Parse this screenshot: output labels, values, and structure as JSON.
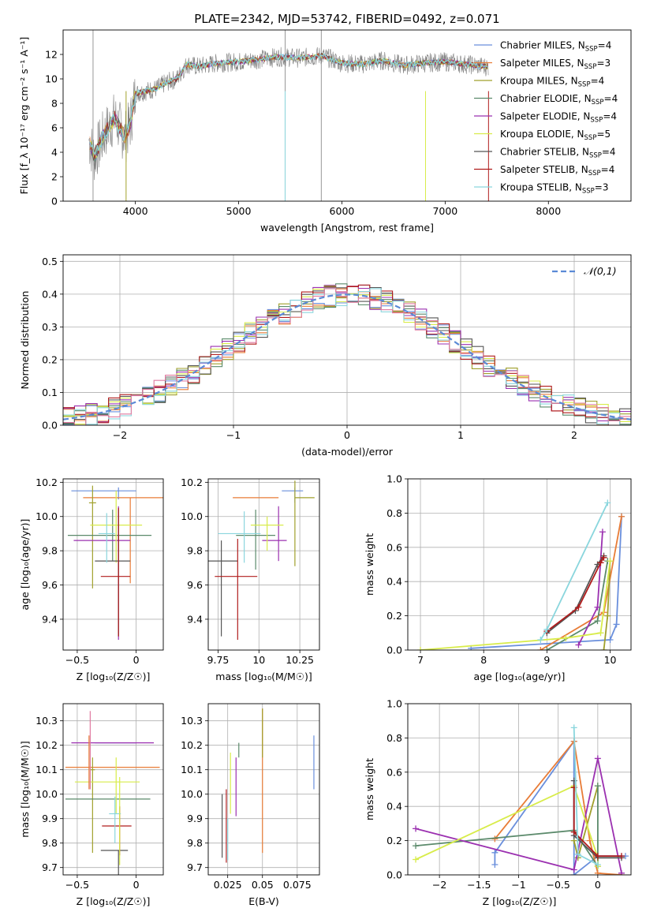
{
  "figure_title": "PLATE=2342, MJD=53742, FIBERID=0492, z=0.071",
  "models": [
    {
      "name": "Chabrier MILES",
      "nssp": "4",
      "color": "#6a8fdc"
    },
    {
      "name": "Salpeter MILES",
      "nssp": "3",
      "color": "#e87c37"
    },
    {
      "name": "Kroupa MILES",
      "nssp": "4",
      "color": "#a0a02c"
    },
    {
      "name": "Chabrier ELODIE",
      "nssp": "4",
      "color": "#5b8a6b"
    },
    {
      "name": "Salpeter ELODIE",
      "nssp": "4",
      "color": "#9b30b0"
    },
    {
      "name": "Kroupa ELODIE",
      "nssp": "5",
      "color": "#d8ec4a"
    },
    {
      "name": "Chabrier STELIB",
      "nssp": "4",
      "color": "#555555"
    },
    {
      "name": "Salpeter STELIB",
      "nssp": "4",
      "color": "#b01c1c"
    },
    {
      "name": "Kroupa STELIB",
      "nssp": "3",
      "color": "#8ad6dd"
    }
  ],
  "extra_colors": {
    "pink": "#e07aa0",
    "data_gray": "#7f7f7f",
    "normal_curve": "#5b8ad6"
  },
  "chart_data": [
    {
      "id": "spectrum",
      "type": "line",
      "xlabel": "wavelength [Angstrom, rest frame]",
      "ylabel": "Flux [f_λ 10⁻¹⁷ erg cm⁻² s⁻¹ A⁻¹]",
      "xlim": [
        3300,
        8800
      ],
      "ylim": [
        0,
        14
      ],
      "xticks": [
        4000,
        5000,
        6000,
        7000,
        8000
      ],
      "yticks": [
        0,
        2,
        4,
        6,
        8,
        10,
        12
      ],
      "legend_position": "upper-right",
      "series": [
        {
          "name": "data",
          "x": [
            3550,
            3600,
            3700,
            3800,
            3900,
            3950,
            4000,
            4100,
            4200,
            4300,
            4400,
            4500,
            4600,
            4800,
            5000,
            5200,
            5400,
            5600,
            5800,
            6000,
            6200,
            6400,
            6600,
            6800,
            7000,
            7200,
            7400
          ],
          "y": [
            5.0,
            3.6,
            5.5,
            6.8,
            5.2,
            6.3,
            8.8,
            9.0,
            9.2,
            9.7,
            10.0,
            11.2,
            11.0,
            11.3,
            11.4,
            11.6,
            11.8,
            11.7,
            11.9,
            11.3,
            11.2,
            11.5,
            11.1,
            11.3,
            11.4,
            11.2,
            11.0
          ]
        }
      ]
    },
    {
      "id": "residuals",
      "type": "line",
      "xlabel": "(data-model)/error",
      "ylabel": "Normed distribution",
      "xlim": [
        -2.5,
        2.5
      ],
      "ylim": [
        0,
        0.52
      ],
      "xticks": [
        -2,
        -1,
        0,
        1,
        2
      ],
      "yticks": [
        0.0,
        0.1,
        0.2,
        0.3,
        0.4,
        0.5
      ],
      "legend": "𝒩(0,1)",
      "normal": {
        "mean": 0,
        "sigma": 1
      }
    },
    {
      "id": "age_vs_Z",
      "type": "scatter",
      "xlabel": "Z [log₁₀(Z/Z☉)]",
      "ylabel": "age  [log₁₀(age/yr)]",
      "xlim": [
        -0.62,
        0.23
      ],
      "ylim": [
        9.22,
        10.22
      ],
      "xticks": [
        -0.5,
        0.0
      ],
      "yticks": [
        9.4,
        9.6,
        9.8,
        10.0,
        10.2
      ],
      "points": [
        {
          "x": -0.15,
          "xerr": [
            0.4,
            0.15
          ],
          "y": 10.15,
          "yerr": [
            0.05,
            0.02
          ]
        },
        {
          "x": -0.05,
          "xerr": [
            0.4,
            0.28
          ],
          "y": 10.11,
          "yerr": [
            0.5,
            0.0
          ]
        },
        {
          "x": -0.37,
          "xerr": [
            0.03,
            0.03
          ],
          "y": 10.08,
          "yerr": [
            0.5,
            0.1
          ]
        },
        {
          "x": -0.2,
          "xerr": [
            0.38,
            0.33
          ],
          "y": 9.89,
          "yerr": [
            0.15,
            0.15
          ]
        },
        {
          "x": -0.15,
          "xerr": [
            0.38,
            0.1
          ],
          "y": 9.86,
          "yerr": [
            0.58,
            0.2
          ]
        },
        {
          "x": -0.17,
          "xerr": [
            0.22,
            0.22
          ],
          "y": 9.95,
          "yerr": [
            0.22,
            0.2
          ]
        },
        {
          "x": -0.15,
          "xerr": [
            0.2,
            0.1
          ],
          "y": 9.74,
          "yerr": [
            0.44,
            0.3
          ]
        },
        {
          "x": -0.15,
          "xerr": [
            0.15,
            0.1
          ],
          "y": 9.65,
          "yerr": [
            0.35,
            0.4
          ]
        },
        {
          "x": -0.25,
          "xerr": [
            0.07,
            0.07
          ],
          "y": 9.9,
          "yerr": [
            0.17,
            0.12
          ]
        }
      ]
    },
    {
      "id": "age_vs_mass",
      "type": "scatter",
      "xlabel": "mass [log₁₀(M/M☉)]",
      "ylabel": "",
      "xlim": [
        9.69,
        10.37
      ],
      "ylim": [
        9.22,
        10.22
      ],
      "xticks": [
        9.75,
        10.0,
        10.25
      ],
      "yticks": [
        9.4,
        9.6,
        9.8,
        10.0,
        10.2
      ],
      "points": [
        {
          "x": 10.22,
          "xerr": [
            0.08,
            0.05
          ],
          "y": 10.15,
          "yerr": [
            0.07,
            0.02
          ]
        },
        {
          "x": 10.12,
          "xerr": [
            0.28,
            0.0
          ],
          "y": 10.11,
          "yerr": [
            0.0,
            0.0
          ]
        },
        {
          "x": 10.22,
          "xerr": [
            0.0,
            0.12
          ],
          "y": 10.11,
          "yerr": [
            0.4,
            0.1
          ]
        },
        {
          "x": 9.98,
          "xerr": [
            0.12,
            0.12
          ],
          "y": 9.89,
          "yerr": [
            0.2,
            0.15
          ]
        },
        {
          "x": 10.12,
          "xerr": [
            0.1,
            0.05
          ],
          "y": 9.86,
          "yerr": [
            0.12,
            0.2
          ]
        },
        {
          "x": 10.05,
          "xerr": [
            0.1,
            0.1
          ],
          "y": 9.95,
          "yerr": [
            0.15,
            0.05
          ]
        },
        {
          "x": 9.77,
          "xerr": [
            0.14,
            0.1
          ],
          "y": 9.74,
          "yerr": [
            0.44,
            0.12
          ]
        },
        {
          "x": 9.87,
          "xerr": [
            0.14,
            0.12
          ],
          "y": 9.65,
          "yerr": [
            0.37,
            0.22
          ]
        },
        {
          "x": 9.91,
          "xerr": [
            0.16,
            0.1
          ],
          "y": 9.9,
          "yerr": [
            0.17,
            0.13
          ]
        }
      ]
    },
    {
      "id": "weight_vs_age",
      "type": "line",
      "xlabel": "age  [log₁₀(age/yr)]",
      "ylabel": "mass weight",
      "xlim": [
        6.8,
        10.33
      ],
      "ylim": [
        0,
        1.0
      ],
      "xticks": [
        7,
        8,
        9,
        10
      ],
      "yticks": [
        0.0,
        0.2,
        0.4,
        0.6,
        0.8,
        1.0
      ],
      "series": [
        {
          "name": "Chabrier MILES",
          "x": [
            7.8,
            10.0,
            10.1,
            10.18
          ],
          "y": [
            0.01,
            0.06,
            0.15,
            0.78
          ]
        },
        {
          "name": "Salpeter MILES",
          "x": [
            8.9,
            9.9,
            10.18
          ],
          "y": [
            0.0,
            0.22,
            0.78
          ]
        },
        {
          "name": "Kroupa MILES",
          "x": [
            9.9,
            9.96,
            10.0
          ],
          "y": [
            0.0,
            0.2,
            0.52
          ]
        },
        {
          "name": "Chabrier ELODIE",
          "x": [
            9.0,
            9.8,
            9.96
          ],
          "y": [
            0.0,
            0.17,
            0.52
          ]
        },
        {
          "name": "Salpeter ELODIE",
          "x": [
            9.5,
            9.8,
            9.88
          ],
          "y": [
            0.03,
            0.25,
            0.69
          ]
        },
        {
          "name": "Kroupa ELODIE",
          "x": [
            7.0,
            9.3,
            9.85,
            10.0
          ],
          "y": [
            0.0,
            0.07,
            0.1,
            0.52
          ]
        },
        {
          "name": "Chabrier STELIB",
          "x": [
            9.0,
            9.45,
            9.8,
            9.9
          ],
          "y": [
            0.1,
            0.23,
            0.5,
            0.55
          ]
        },
        {
          "name": "Salpeter STELIB",
          "x": [
            9.0,
            9.5,
            9.85,
            9.9
          ],
          "y": [
            0.11,
            0.25,
            0.51,
            0.54
          ]
        },
        {
          "name": "Kroupa STELIB",
          "x": [
            8.9,
            9.0,
            9.96
          ],
          "y": [
            0.06,
            0.12,
            0.86
          ]
        }
      ]
    },
    {
      "id": "mass_vs_Z",
      "type": "scatter",
      "xlabel": "Z [log₁₀(Z/Z☉)]",
      "ylabel": "mass [log₁₀(M/M☉)]",
      "xlim": [
        -0.62,
        0.23
      ],
      "ylim": [
        9.67,
        10.37
      ],
      "xticks": [
        -0.5,
        0.0
      ],
      "yticks": [
        9.7,
        9.8,
        9.9,
        10.0,
        10.1,
        10.2,
        10.3
      ],
      "points": [
        {
          "x": -0.2,
          "xerr": [
            0.15,
            0.2
          ],
          "y": 10.21,
          "yerr": [
            0.0,
            0.0
          ]
        },
        {
          "x": -0.05,
          "xerr": [
            0.55,
            0.25
          ],
          "y": 10.11,
          "yerr": [
            0.0,
            0.0
          ]
        },
        {
          "x": -0.37,
          "xerr": [
            0.02,
            0.02
          ],
          "y": 10.1,
          "yerr": [
            0.34,
            0.05
          ]
        },
        {
          "x": -0.25,
          "xerr": [
            0.35,
            0.37
          ],
          "y": 9.98,
          "yerr": [
            0.0,
            0.0
          ]
        },
        {
          "x": -0.2,
          "xerr": [
            0.35,
            0.35
          ],
          "y": 10.21,
          "yerr": [
            0.0,
            0.0
          ]
        },
        {
          "x": -0.17,
          "xerr": [
            0.35,
            0.2
          ],
          "y": 10.05,
          "yerr": [
            0.13,
            0.1
          ]
        },
        {
          "x": -0.15,
          "xerr": [
            0.15,
            0.08
          ],
          "y": 9.77,
          "yerr": [
            0.1,
            0.0
          ]
        },
        {
          "x": -0.14,
          "xerr": [
            0.15,
            0.1
          ],
          "y": 9.87,
          "yerr": [
            0.12,
            0.08
          ]
        },
        {
          "x": -0.18,
          "xerr": [
            0.05,
            0.05
          ],
          "y": 9.92,
          "yerr": [
            0.12,
            0.07
          ]
        },
        {
          "x": -0.39,
          "xerr": [
            0.0,
            0.0
          ],
          "y": 10.14,
          "yerr": [
            0.12,
            0.2
          ]
        },
        {
          "x": -0.4,
          "xerr": [
            0.0,
            0.0
          ],
          "y": 10.12,
          "yerr": [
            0.1,
            0.12
          ]
        },
        {
          "x": -0.14,
          "xerr": [
            0.0,
            0.0
          ],
          "y": 9.95,
          "yerr": [
            0.24,
            0.12
          ]
        }
      ]
    },
    {
      "id": "mass_vs_ebv",
      "type": "scatter",
      "xlabel": "E(B-V)",
      "ylabel": "",
      "xlim": [
        0.011,
        0.091
      ],
      "ylim": [
        9.67,
        10.37
      ],
      "xticks": [
        0.025,
        0.05,
        0.075
      ],
      "yticks": [
        9.7,
        9.8,
        9.9,
        10.0,
        10.1,
        10.2,
        10.3
      ],
      "points": [
        {
          "x": 0.087,
          "xerr": [
            0,
            0
          ],
          "y": 10.13,
          "yerr": [
            0.11,
            0.11
          ]
        },
        {
          "x": 0.05,
          "xerr": [
            0,
            0
          ],
          "y": 10.05,
          "yerr": [
            0.29,
            0.3
          ]
        },
        {
          "x": 0.05,
          "xerr": [
            0,
            0
          ],
          "y": 10.2,
          "yerr": [
            0.05,
            0.15
          ]
        },
        {
          "x": 0.033,
          "xerr": [
            0,
            0
          ],
          "y": 10.18,
          "yerr": [
            0.03,
            0.03
          ]
        },
        {
          "x": 0.031,
          "xerr": [
            0,
            0
          ],
          "y": 10.04,
          "yerr": [
            0.13,
            0.11
          ]
        },
        {
          "x": 0.027,
          "xerr": [
            0,
            0
          ],
          "y": 10.06,
          "yerr": [
            0.14,
            0.11
          ]
        },
        {
          "x": 0.021,
          "xerr": [
            0,
            0
          ],
          "y": 9.88,
          "yerr": [
            0.14,
            0.12
          ]
        },
        {
          "x": 0.024,
          "xerr": [
            0,
            0
          ],
          "y": 9.87,
          "yerr": [
            0.15,
            0.15
          ]
        },
        {
          "x": 0.025,
          "xerr": [
            0,
            0
          ],
          "y": 9.85,
          "yerr": [
            0.12,
            0.05
          ]
        }
      ]
    },
    {
      "id": "weight_vs_Z",
      "type": "line",
      "xlabel": "Z [log₁₀(Z/Z☉)]",
      "ylabel": "mass weight",
      "xlim": [
        -2.4,
        0.42
      ],
      "ylim": [
        0,
        1.0
      ],
      "xticks": [
        -2.0,
        -1.5,
        -1.0,
        -0.5,
        0.0
      ],
      "yticks": [
        0.0,
        0.2,
        0.4,
        0.6,
        0.8,
        1.0
      ],
      "series": [
        {
          "name": "Chabrier MILES",
          "x": [
            -1.3,
            -1.3,
            -0.3,
            -0.3,
            0.0,
            0.35
          ],
          "y": [
            0.06,
            0.13,
            0.78,
            0.0,
            0.11,
            0.11
          ]
        },
        {
          "name": "Salpeter MILES",
          "x": [
            -1.3,
            -0.3,
            -0.1,
            0.0,
            0.3
          ],
          "y": [
            0.21,
            0.78,
            0.2,
            0.01,
            0.0
          ]
        },
        {
          "name": "Kroupa MILES",
          "x": [
            -0.3,
            -0.25,
            0.0
          ],
          "y": [
            0.2,
            0.1,
            0.52
          ]
        },
        {
          "name": "Chabrier ELODIE",
          "x": [
            -2.3,
            -0.3,
            0.0,
            0.0
          ],
          "y": [
            0.17,
            0.26,
            0.05,
            0.52
          ]
        },
        {
          "name": "Salpeter ELODIE",
          "x": [
            -2.3,
            -0.3,
            0.0,
            0.3
          ],
          "y": [
            0.27,
            0.03,
            0.68,
            0.01
          ]
        },
        {
          "name": "Kroupa ELODIE",
          "x": [
            -2.3,
            -0.3,
            0.0,
            0.0
          ],
          "y": [
            0.09,
            0.52,
            0.1,
            0.05
          ]
        },
        {
          "name": "Chabrier STELIB",
          "x": [
            -0.3,
            -0.3,
            0.0,
            0.3
          ],
          "y": [
            0.55,
            0.23,
            0.1,
            0.1
          ]
        },
        {
          "name": "Salpeter STELIB",
          "x": [
            -0.3,
            -0.3,
            0.0,
            0.3
          ],
          "y": [
            0.51,
            0.25,
            0.11,
            0.11
          ]
        },
        {
          "name": "Kroupa STELIB",
          "x": [
            -0.3,
            -0.25,
            0.0
          ],
          "y": [
            0.86,
            0.12,
            0.06
          ]
        }
      ]
    }
  ]
}
